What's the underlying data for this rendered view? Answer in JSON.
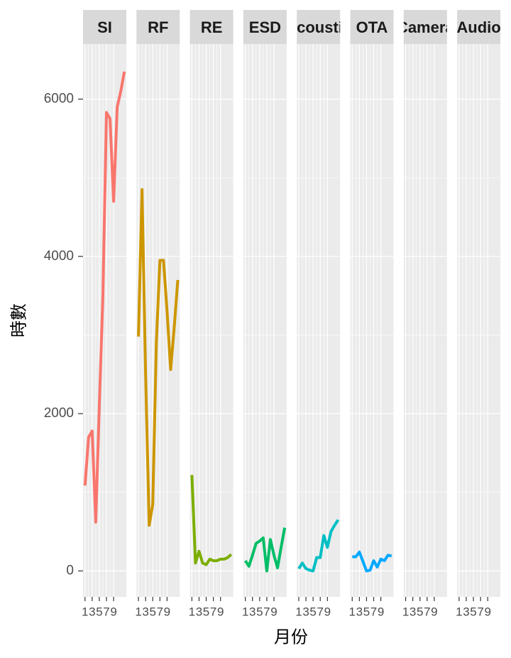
{
  "chart_data": {
    "type": "line",
    "facet": true,
    "x_label": "月份",
    "y_label": "時數",
    "x": [
      1,
      2,
      3,
      4,
      5,
      6,
      7,
      8,
      9,
      10,
      11,
      12
    ],
    "xlim": [
      0.45,
      12.55
    ],
    "xticks": [
      1,
      3,
      5,
      7,
      9
    ],
    "ylim": [
      -330,
      6700
    ],
    "yticks": [
      0,
      2000,
      4000,
      6000
    ],
    "grid": true,
    "series": [
      {
        "name": "SI",
        "color": "#F8766D",
        "values": [
          1085,
          1700,
          1780,
          620,
          2100,
          3500,
          5830,
          5750,
          4700,
          5900,
          6100,
          6350
        ]
      },
      {
        "name": "RF",
        "color": "#CD9600",
        "values": [
          2980,
          4850,
          2500,
          580,
          850,
          2900,
          3950,
          3950,
          3300,
          2560,
          3100,
          3700
        ]
      },
      {
        "name": "RE",
        "color": "#7CAE00",
        "values": [
          1220,
          100,
          250,
          100,
          80,
          150,
          130,
          130,
          150,
          150,
          170,
          210
        ]
      },
      {
        "name": "ESD",
        "color": "#00BE67",
        "values": [
          130,
          60,
          200,
          350,
          380,
          420,
          0,
          400,
          200,
          40,
          300,
          550
        ]
      },
      {
        "name": "Acoustic",
        "color": "#00BFC4",
        "values": [
          30,
          100,
          30,
          10,
          0,
          170,
          170,
          450,
          300,
          500,
          580,
          650
        ]
      },
      {
        "name": "OTA",
        "color": "#00A9FF",
        "values": [
          180,
          180,
          240,
          120,
          0,
          10,
          130,
          50,
          150,
          130,
          200,
          190
        ]
      },
      {
        "name": "Camera",
        "color": "#C77CFF",
        "values": [
          null,
          null,
          null,
          null,
          null,
          null,
          null,
          null,
          null,
          null,
          null,
          null
        ]
      },
      {
        "name": "Audio",
        "color": "#FF61CC",
        "values": [
          null,
          null,
          null,
          null,
          null,
          null,
          null,
          null,
          null,
          null,
          null,
          null
        ]
      }
    ]
  }
}
